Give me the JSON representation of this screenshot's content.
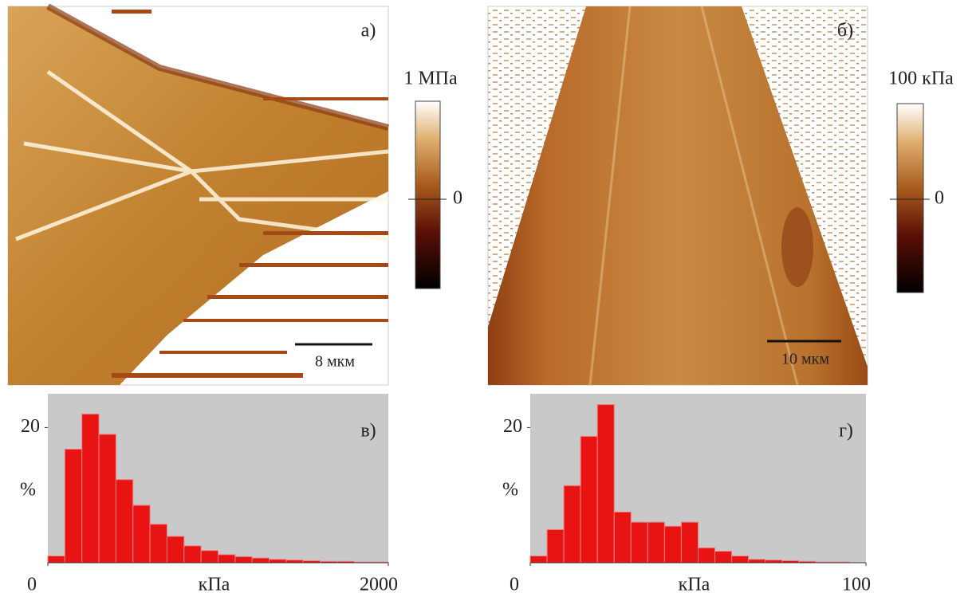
{
  "images": [
    {
      "panel_label": "а)",
      "colorbar_label": "1 МПа",
      "colorbar_tick": 0,
      "scale_bar": "8 мкм"
    },
    {
      "panel_label": "б)",
      "colorbar_label": "100 кПа",
      "colorbar_tick": 0,
      "scale_bar": "10 мкм"
    }
  ],
  "chart_data": [
    {
      "type": "histogram",
      "title": "в)",
      "xlabel": "кПа",
      "ylabel": "%",
      "color": "#e81414",
      "bins": [
        0,
        100,
        200,
        300,
        400,
        500,
        600,
        700,
        800,
        900,
        1000,
        1100,
        1200,
        1300,
        1400,
        1500,
        1600,
        1700,
        1800,
        1900,
        2000
      ],
      "values": [
        1,
        16.8,
        22,
        19,
        12.3,
        8.5,
        5.7,
        3.9,
        2.5,
        1.8,
        1.2,
        0.9,
        0.7,
        0.5,
        0.4,
        0.3,
        0.2,
        0.2,
        0.1,
        0.1
      ],
      "xlim": [
        0,
        2000
      ],
      "xticks": [
        0,
        2000
      ],
      "ylim": [
        0,
        25
      ],
      "yticks": [
        20
      ]
    },
    {
      "type": "histogram",
      "title": "г)",
      "xlabel": "кПа",
      "ylabel": "%",
      "color": "#e81414",
      "bins": [
        0,
        5,
        10,
        15,
        20,
        25,
        30,
        35,
        40,
        45,
        50,
        55,
        60,
        65,
        70,
        75,
        80,
        85,
        90,
        95,
        100
      ],
      "values": [
        1,
        4.9,
        11.4,
        18.7,
        23.4,
        7.5,
        6,
        6,
        5.4,
        6,
        2.2,
        1.7,
        1,
        0.5,
        0.4,
        0.3,
        0.2,
        0.1,
        0.1,
        0
      ],
      "xlim": [
        0,
        100
      ],
      "xticks": [
        0,
        100
      ],
      "ylim": [
        0,
        25
      ],
      "yticks": [
        20
      ]
    }
  ]
}
